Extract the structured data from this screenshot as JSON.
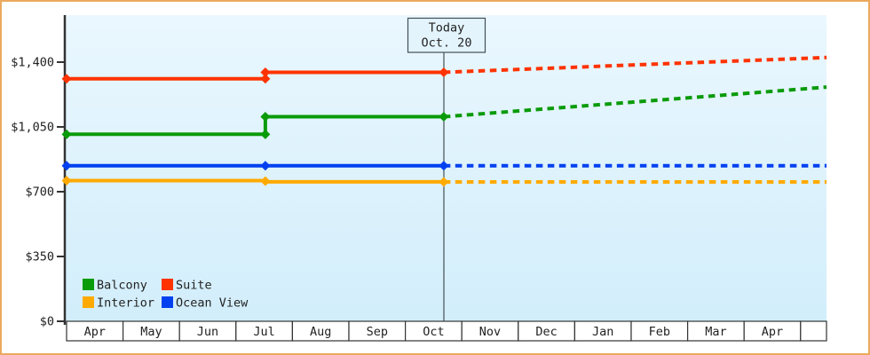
{
  "colors": {
    "frame_border": "#eba95e",
    "plot_bg_top": "#eaf7fe",
    "plot_bg_bottom": "#d2eefb",
    "axis": "#333333",
    "text": "#222222",
    "today_line": "#445055",
    "today_box_fill": "#e3f4fd",
    "today_box_border": "#445055",
    "month_cell_fill": "#ffffff"
  },
  "chart_data": {
    "type": "line",
    "title": "",
    "ylabel": "",
    "xlabel": "",
    "ylim": [
      0,
      1655
    ],
    "grid": false,
    "y_ticks": [
      {
        "label": "$0",
        "value": 0
      },
      {
        "label": "$350",
        "value": 350
      },
      {
        "label": "$700",
        "value": 700
      },
      {
        "label": "$1,050",
        "value": 1050
      },
      {
        "label": "$1,400",
        "value": 1400
      }
    ],
    "months": [
      "Apr",
      "May",
      "Jun",
      "Jul",
      "Aug",
      "Sep",
      "Oct",
      "Nov",
      "Dec",
      "Jan",
      "Feb",
      "Mar",
      "Apr",
      ""
    ],
    "today": {
      "line1": "Today",
      "line2": "Oct. 20",
      "month_frac": 6.68
    },
    "forecast_end_frac": 13.46,
    "series": [
      {
        "name": "Balcony",
        "color": "#0a9b0a",
        "history": [
          [
            0,
            1010
          ],
          [
            3.52,
            1010
          ],
          [
            3.52,
            1105
          ],
          [
            6.68,
            1105
          ]
        ],
        "markers": [
          [
            0,
            1010
          ],
          [
            3.52,
            1010
          ],
          [
            3.52,
            1105
          ],
          [
            6.68,
            1105
          ]
        ],
        "forecast_value_at_end": 1265
      },
      {
        "name": "Suite",
        "color": "#ff3300",
        "history": [
          [
            0,
            1310
          ],
          [
            3.52,
            1310
          ],
          [
            3.52,
            1345
          ],
          [
            6.68,
            1345
          ]
        ],
        "markers": [
          [
            0,
            1310
          ],
          [
            3.52,
            1310
          ],
          [
            3.52,
            1345
          ],
          [
            6.68,
            1345
          ]
        ],
        "forecast_value_at_end": 1425
      },
      {
        "name": "Interior",
        "color": "#ffaa00",
        "history": [
          [
            0,
            760
          ],
          [
            3.52,
            760
          ],
          [
            3.52,
            753
          ],
          [
            6.68,
            753
          ]
        ],
        "markers": [
          [
            0,
            760
          ],
          [
            3.52,
            757
          ],
          [
            6.68,
            753
          ]
        ],
        "forecast_value_at_end": 753
      },
      {
        "name": "Ocean View",
        "color": "#0341f0",
        "history": [
          [
            0,
            840
          ],
          [
            3.52,
            840
          ],
          [
            6.68,
            840
          ]
        ],
        "markers": [
          [
            0,
            840
          ],
          [
            3.52,
            840
          ],
          [
            6.68,
            840
          ]
        ],
        "forecast_value_at_end": 840
      }
    ],
    "legend": {
      "position": "bottom-left-inside",
      "rows": [
        [
          "Balcony",
          "Suite"
        ],
        [
          "Interior",
          "Ocean View"
        ]
      ]
    }
  }
}
